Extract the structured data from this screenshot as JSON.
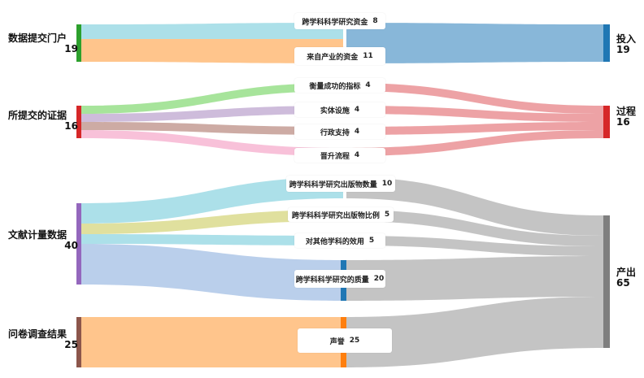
{
  "sources": [
    {
      "label": "数据提交门户",
      "value": "19",
      "color": "#2ca02c"
    },
    {
      "label": "所提交的证据",
      "value": "16",
      "color": "#d62728"
    },
    {
      "label": "文献计量数据",
      "value": "40",
      "color": "#9467bd"
    },
    {
      "label": "问卷调查结果",
      "value": "25",
      "color": "#8c564b"
    }
  ],
  "middle": [
    {
      "label": "跨学科科学研究资金",
      "value": "8"
    },
    {
      "label": "来自产业的资金",
      "value": "11"
    },
    {
      "label": "衡量成功的指标",
      "value": "4"
    },
    {
      "label": "实体设施",
      "value": "4"
    },
    {
      "label": "行政支持",
      "value": "4"
    },
    {
      "label": "晋升流程",
      "value": "4"
    },
    {
      "label": "跨学科科学研究出版物数量",
      "value": "10"
    },
    {
      "label": "跨学科科学研究出版物比例",
      "value": "5"
    },
    {
      "label": "对其他学科的效用",
      "value": "5"
    },
    {
      "label": "跨学科科学研究的质量",
      "value": "20"
    },
    {
      "label": "声誉",
      "value": "25"
    }
  ],
  "targets": [
    {
      "label": "投入",
      "value": "19",
      "color": "#1f77b4"
    },
    {
      "label": "过程",
      "value": "16",
      "color": "#d62728"
    },
    {
      "label": "产出",
      "value": "65",
      "color": "#7f7f7f"
    }
  ],
  "colors": {
    "link_input": "#6aa5cf",
    "link_process": "#e88b8f",
    "link_output": "#b5b5b5",
    "bar_blue": "#1f77b4",
    "bar_orange": "#ff7f0e"
  },
  "links_left": [
    {
      "from": 0,
      "to": 0,
      "color": "#9edae5"
    },
    {
      "from": 0,
      "to": 1,
      "color": "#ffbb78"
    },
    {
      "from": 1,
      "to": 2,
      "color": "#98df8a"
    },
    {
      "from": 1,
      "to": 3,
      "color": "#c5b0d5"
    },
    {
      "from": 1,
      "to": 4,
      "color": "#c49c94"
    },
    {
      "from": 1,
      "to": 5,
      "color": "#f7b6d2"
    },
    {
      "from": 2,
      "to": 6,
      "color": "#9edae5"
    },
    {
      "from": 2,
      "to": 7,
      "color": "#dbdb8d"
    },
    {
      "from": 2,
      "to": 8,
      "color": "#9edae5"
    },
    {
      "from": 2,
      "to": 9,
      "color": "#aec7e8"
    },
    {
      "from": 3,
      "to": 10,
      "color": "#ffbb78"
    }
  ]
}
